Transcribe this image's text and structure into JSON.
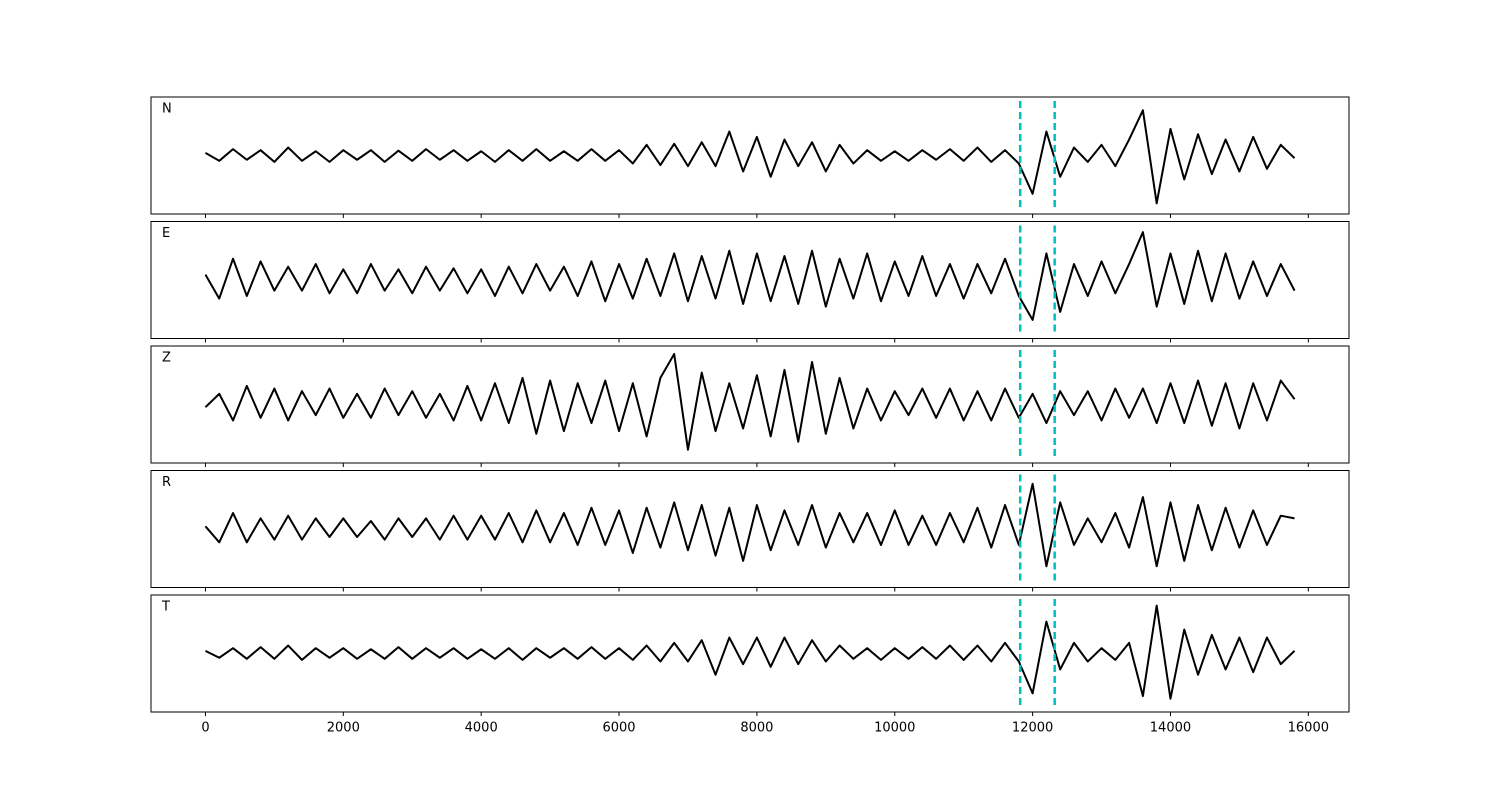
{
  "chart_data": {
    "type": "line",
    "subplots": true,
    "x": [
      0,
      200,
      400,
      600,
      800,
      1000,
      1200,
      1400,
      1600,
      1800,
      2000,
      2200,
      2400,
      2600,
      2800,
      3000,
      3200,
      3400,
      3600,
      3800,
      4000,
      4200,
      4400,
      4600,
      4800,
      5000,
      5200,
      5400,
      5600,
      5800,
      6000,
      6200,
      6400,
      6600,
      6800,
      7000,
      7200,
      7400,
      7600,
      7800,
      8000,
      8200,
      8400,
      8600,
      8800,
      9000,
      9200,
      9400,
      9600,
      9800,
      10000,
      10200,
      10400,
      10600,
      10800,
      11000,
      11200,
      11400,
      11600,
      11800,
      12000,
      12200,
      12400,
      12600,
      12800,
      13000,
      13200,
      13400,
      13600,
      13800,
      14000,
      14200,
      14400,
      14600,
      14800,
      15000,
      15200,
      15400,
      15600,
      15800
    ],
    "series": [
      {
        "name": "N",
        "color": "#000000",
        "values": [
          0.05,
          -0.1,
          0.12,
          -0.08,
          0.1,
          -0.12,
          0.15,
          -0.1,
          0.08,
          -0.12,
          0.1,
          -0.08,
          0.1,
          -0.12,
          0.09,
          -0.1,
          0.12,
          -0.08,
          0.1,
          -0.1,
          0.08,
          -0.12,
          0.1,
          -0.1,
          0.12,
          -0.1,
          0.08,
          -0.1,
          0.12,
          -0.1,
          0.1,
          -0.15,
          0.2,
          -0.18,
          0.22,
          -0.2,
          0.25,
          -0.2,
          0.45,
          -0.3,
          0.35,
          -0.4,
          0.3,
          -0.2,
          0.25,
          -0.3,
          0.2,
          -0.15,
          0.1,
          -0.1,
          0.08,
          -0.1,
          0.1,
          -0.08,
          0.12,
          -0.1,
          0.15,
          -0.12,
          0.1,
          -0.15,
          -0.72,
          0.45,
          -0.4,
          0.15,
          -0.12,
          0.2,
          -0.2,
          0.3,
          0.85,
          -0.9,
          0.5,
          -0.45,
          0.4,
          -0.35,
          0.3,
          -0.3,
          0.35,
          -0.25,
          0.2,
          -0.05
        ]
      },
      {
        "name": "E",
        "color": "#000000",
        "values": [
          0.1,
          -0.35,
          0.4,
          -0.3,
          0.35,
          -0.2,
          0.25,
          -0.2,
          0.3,
          -0.25,
          0.2,
          -0.25,
          0.3,
          -0.2,
          0.2,
          -0.25,
          0.25,
          -0.2,
          0.22,
          -0.25,
          0.2,
          -0.3,
          0.25,
          -0.25,
          0.3,
          -0.2,
          0.25,
          -0.3,
          0.35,
          -0.4,
          0.3,
          -0.35,
          0.4,
          -0.3,
          0.5,
          -0.4,
          0.45,
          -0.35,
          0.55,
          -0.45,
          0.5,
          -0.4,
          0.45,
          -0.45,
          0.55,
          -0.5,
          0.4,
          -0.35,
          0.5,
          -0.4,
          0.35,
          -0.3,
          0.45,
          -0.3,
          0.3,
          -0.35,
          0.3,
          -0.25,
          0.4,
          -0.3,
          -0.75,
          0.5,
          -0.6,
          0.3,
          -0.3,
          0.35,
          -0.25,
          0.3,
          0.9,
          -0.5,
          0.5,
          -0.45,
          0.55,
          -0.4,
          0.5,
          -0.35,
          0.35,
          -0.3,
          0.3,
          -0.2
        ]
      },
      {
        "name": "Z",
        "color": "#000000",
        "values": [
          -0.05,
          0.2,
          -0.3,
          0.35,
          -0.25,
          0.3,
          -0.3,
          0.25,
          -0.2,
          0.3,
          -0.25,
          0.2,
          -0.25,
          0.3,
          -0.2,
          0.25,
          -0.25,
          0.2,
          -0.3,
          0.35,
          -0.3,
          0.4,
          -0.35,
          0.5,
          -0.55,
          0.45,
          -0.5,
          0.4,
          -0.35,
          0.45,
          -0.5,
          0.4,
          -0.6,
          0.5,
          0.95,
          -0.85,
          0.6,
          -0.5,
          0.4,
          -0.45,
          0.55,
          -0.6,
          0.65,
          -0.7,
          0.8,
          -0.55,
          0.5,
          -0.45,
          0.3,
          -0.3,
          0.25,
          -0.2,
          0.3,
          -0.25,
          0.3,
          -0.3,
          0.25,
          -0.3,
          0.3,
          -0.25,
          0.2,
          -0.35,
          0.25,
          -0.2,
          0.25,
          -0.3,
          0.3,
          -0.25,
          0.3,
          -0.35,
          0.4,
          -0.35,
          0.45,
          -0.4,
          0.4,
          -0.45,
          0.4,
          -0.3,
          0.45,
          0.1
        ]
      },
      {
        "name": "R",
        "color": "#000000",
        "values": [
          0.05,
          -0.25,
          0.3,
          -0.25,
          0.2,
          -0.2,
          0.25,
          -0.2,
          0.2,
          -0.15,
          0.2,
          -0.15,
          0.15,
          -0.2,
          0.2,
          -0.15,
          0.2,
          -0.2,
          0.25,
          -0.2,
          0.25,
          -0.2,
          0.3,
          -0.25,
          0.35,
          -0.25,
          0.3,
          -0.3,
          0.4,
          -0.3,
          0.35,
          -0.45,
          0.4,
          -0.35,
          0.5,
          -0.4,
          0.45,
          -0.5,
          0.4,
          -0.6,
          0.45,
          -0.4,
          0.35,
          -0.3,
          0.45,
          -0.35,
          0.3,
          -0.25,
          0.3,
          -0.3,
          0.35,
          -0.3,
          0.25,
          -0.3,
          0.3,
          -0.25,
          0.4,
          -0.35,
          0.45,
          -0.3,
          0.85,
          -0.7,
          0.5,
          -0.3,
          0.2,
          -0.25,
          0.3,
          -0.35,
          0.6,
          -0.7,
          0.5,
          -0.6,
          0.45,
          -0.4,
          0.4,
          -0.35,
          0.35,
          -0.3,
          0.25,
          0.2
        ]
      },
      {
        "name": "T",
        "color": "#000000",
        "values": [
          0.05,
          -0.08,
          0.1,
          -0.1,
          0.12,
          -0.1,
          0.15,
          -0.12,
          0.1,
          -0.08,
          0.1,
          -0.1,
          0.08,
          -0.1,
          0.12,
          -0.1,
          0.1,
          -0.08,
          0.1,
          -0.1,
          0.08,
          -0.1,
          0.1,
          -0.12,
          0.1,
          -0.08,
          0.1,
          -0.1,
          0.12,
          -0.1,
          0.1,
          -0.12,
          0.15,
          -0.15,
          0.2,
          -0.15,
          0.25,
          -0.4,
          0.3,
          -0.2,
          0.3,
          -0.25,
          0.3,
          -0.2,
          0.25,
          -0.15,
          0.15,
          -0.1,
          0.1,
          -0.12,
          0.1,
          -0.1,
          0.12,
          -0.1,
          0.15,
          -0.12,
          0.15,
          -0.15,
          0.2,
          -0.15,
          -0.75,
          0.6,
          -0.3,
          0.2,
          -0.15,
          0.1,
          -0.12,
          0.2,
          -0.8,
          0.9,
          -0.85,
          0.45,
          -0.4,
          0.35,
          -0.3,
          0.3,
          -0.35,
          0.3,
          -0.2,
          0.05
        ]
      }
    ],
    "xlim": [
      -790,
      16590
    ],
    "xticks": [
      0,
      2000,
      4000,
      6000,
      8000,
      10000,
      12000,
      14000,
      16000
    ],
    "ylim": [
      -1.1,
      1.1
    ],
    "vlines": {
      "x": [
        11820,
        12320
      ],
      "color": "#00bfbf",
      "style": "dashed"
    }
  }
}
